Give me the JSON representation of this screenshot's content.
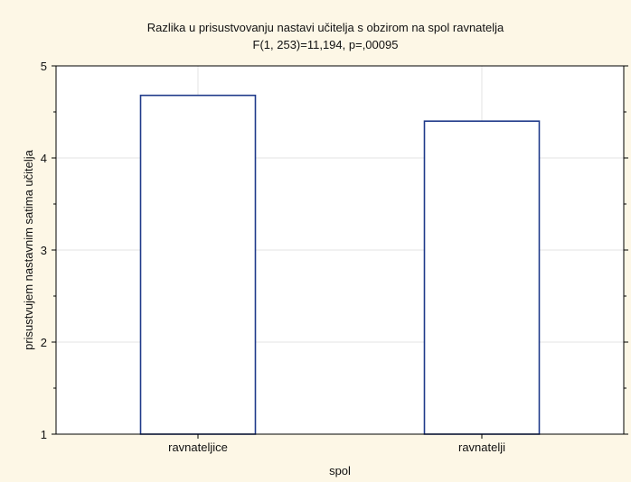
{
  "chart_data": {
    "type": "bar",
    "title": "Razlika u prisustvovanju nastavi učitelja s obzirom na spol ravnatelja",
    "subtitle": "F(1, 253)=11,194, p=,00095",
    "xlabel": "spol",
    "ylabel": "prisustvujem nastavnim satima učitelja",
    "categories": [
      "ravnateljice",
      "ravnatelji"
    ],
    "values": [
      4.68,
      4.4
    ],
    "ylim": [
      1,
      5
    ],
    "yticks": [
      "1",
      "2",
      "3",
      "4",
      "5"
    ],
    "grid": true,
    "legend": "none",
    "colors": {
      "background": "#fdf7e6",
      "plot_background": "#ffffff",
      "bar_fill": "#ffffff",
      "bar_stroke": "#1f3a8a",
      "grid": "#e3e3e3",
      "axis": "#000000"
    }
  }
}
